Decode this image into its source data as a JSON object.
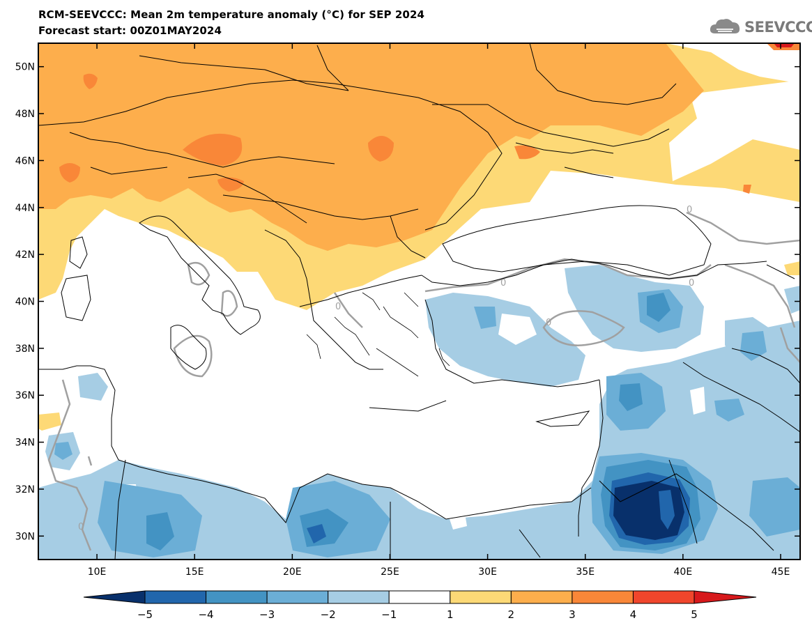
{
  "header": {
    "title": "RCM-SEEVCCC: Mean 2m temperature anomaly (°C) for SEP 2024",
    "subtitle": "Forecast start: 00Z01MAY2024"
  },
  "brand": {
    "logo_text": "SEEVCCC",
    "logo_icon": "cloud-icon"
  },
  "map": {
    "region": "Eastern Mediterranean / Southeast Europe",
    "lon_range": [
      7,
      46
    ],
    "lat_range": [
      29,
      51
    ],
    "lon_ticks": [
      "10E",
      "15E",
      "20E",
      "25E",
      "30E",
      "35E",
      "40E",
      "45E"
    ],
    "lat_ticks": [
      "50N",
      "48N",
      "46N",
      "44N",
      "42N",
      "40N",
      "38N",
      "36N",
      "34N",
      "32N",
      "30N"
    ],
    "contour_label": "0"
  },
  "colorbar": {
    "labels": [
      "−5",
      "−4",
      "−3",
      "−2",
      "−1",
      "1",
      "2",
      "3",
      "4",
      "5"
    ],
    "colors": {
      "below_-5": "#08306b",
      "-5_-4": "#2166ac",
      "-4_-3": "#4393c3",
      "-3_-2": "#6baed6",
      "-2_-1": "#a6cde4",
      "-1_1": "#ffffff",
      "1_2": "#fdd976",
      "2_3": "#fdae4c",
      "3_4": "#f98738",
      "4_5": "#f0462c",
      "above_5": "#d7191c"
    }
  }
}
